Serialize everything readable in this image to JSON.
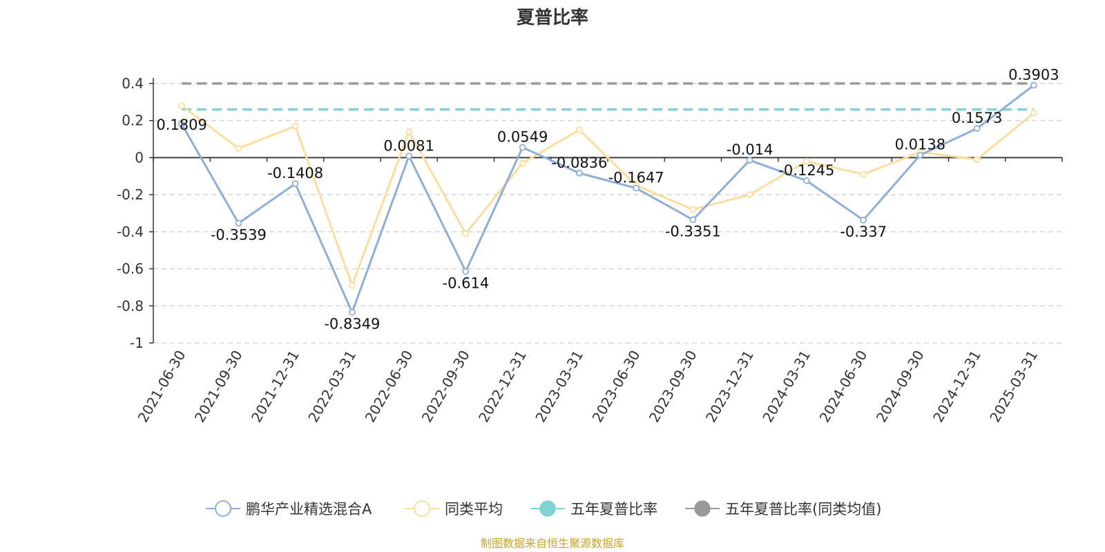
{
  "chart_data": {
    "type": "line",
    "title": "夏普比率",
    "categories": [
      "2021-06-30",
      "2021-09-30",
      "2021-12-31",
      "2022-03-31",
      "2022-06-30",
      "2022-09-30",
      "2022-12-31",
      "2023-03-31",
      "2023-06-30",
      "2023-09-30",
      "2023-12-31",
      "2024-03-31",
      "2024-06-30",
      "2024-09-30",
      "2024-12-31",
      "2025-03-31"
    ],
    "ylim": [
      -1,
      0.4
    ],
    "yticks": [
      0.4,
      0.2,
      0,
      -0.2,
      -0.4,
      -0.6,
      -0.8,
      -1
    ],
    "ytick_labels": [
      "0.4",
      "0.2",
      "0",
      "-0.2",
      "-0.4",
      "-0.6",
      "-0.8",
      "-1"
    ],
    "grid": true,
    "legend_position": "bottom",
    "series": [
      {
        "name": "鹏华产业精选混合A",
        "color": "#8eaed8",
        "values": [
          0.1809,
          -0.3539,
          -0.1408,
          -0.8349,
          0.0081,
          -0.614,
          0.0549,
          -0.0836,
          -0.1647,
          -0.3351,
          -0.014,
          -0.1245,
          -0.337,
          0.0138,
          0.1573,
          0.3903
        ],
        "labels": [
          "0.1809",
          "-0.3539",
          "-0.1408",
          "-0.8349",
          "0.0081",
          "-0.614",
          "0.0549",
          "-0.0836",
          "-0.1647",
          "-0.3351",
          "-0.014",
          "-0.1245",
          "-0.337",
          "0.0138",
          "0.1573",
          "0.3903"
        ]
      },
      {
        "name": "同类平均",
        "color": "#fddc9c",
        "values": [
          0.28,
          0.05,
          0.17,
          -0.69,
          0.14,
          -0.41,
          -0.03,
          0.15,
          -0.15,
          -0.28,
          -0.2,
          -0.02,
          -0.09,
          0.03,
          -0.01,
          0.24
        ]
      },
      {
        "name": "五年夏普比率",
        "color": "#7fd3d3",
        "type": "reference",
        "value": 0.26
      },
      {
        "name": "五年夏普比率(同类均值)",
        "color": "#999999",
        "type": "reference",
        "value": 0.4
      }
    ],
    "source": "制图数据来自恒生聚源数据库"
  }
}
